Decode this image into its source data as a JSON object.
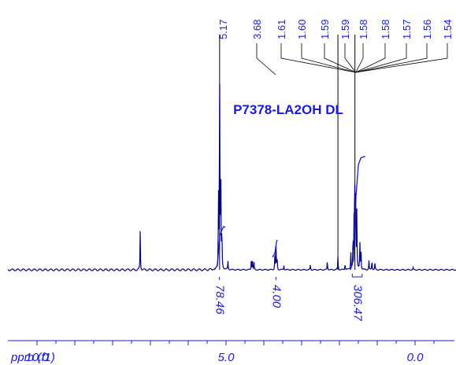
{
  "chart_data": {
    "type": "line",
    "title": "P7378-LA2OH DL",
    "xlabel": "ppm (f1)",
    "xlim": [
      10.0,
      -0.9
    ],
    "x_ticks": [
      {
        "value": 10.0,
        "label": "10.0"
      },
      {
        "value": 5.0,
        "label": "5.0"
      },
      {
        "value": 0.0,
        "label": "0.0"
      }
    ],
    "peak_labels": [
      "5.17",
      "3.68",
      "1.61",
      "1.60",
      "1.59",
      "1.59",
      "1.58",
      "1.58",
      "1.57",
      "1.56",
      "1.54"
    ],
    "peak_label_targets": [
      5.17,
      3.68,
      1.61,
      1.6,
      1.59,
      1.59,
      1.58,
      1.58,
      1.57,
      1.56,
      1.54
    ],
    "long_marker_positions": [
      5.17,
      2.04,
      1.59
    ],
    "integrals": [
      {
        "from": 5.3,
        "to": 5.05,
        "value": "78.46"
      },
      {
        "from": 3.72,
        "to": 3.64,
        "value": "4.00"
      },
      {
        "from": 1.66,
        "to": 1.4,
        "value": "306.47"
      }
    ],
    "peaks": [
      {
        "shift": 7.27,
        "height": 0.17
      },
      {
        "shift": 5.2,
        "height": 0.33
      },
      {
        "shift": 5.17,
        "height": 1.0
      },
      {
        "shift": 5.14,
        "height": 0.55
      },
      {
        "shift": 5.11,
        "height": 0.18
      },
      {
        "shift": 4.95,
        "height": 0.04
      },
      {
        "shift": 4.33,
        "height": 0.05
      },
      {
        "shift": 4.3,
        "height": 0.04
      },
      {
        "shift": 4.26,
        "height": 0.03
      },
      {
        "shift": 3.71,
        "height": 0.06
      },
      {
        "shift": 3.68,
        "height": 0.12
      },
      {
        "shift": 3.65,
        "height": 0.06
      },
      {
        "shift": 3.47,
        "height": 0.02
      },
      {
        "shift": 2.77,
        "height": 0.02
      },
      {
        "shift": 2.32,
        "height": 0.04
      },
      {
        "shift": 2.04,
        "height": 0.06
      },
      {
        "shift": 1.85,
        "height": 0.03
      },
      {
        "shift": 1.7,
        "height": 0.08
      },
      {
        "shift": 1.64,
        "height": 0.15
      },
      {
        "shift": 1.61,
        "height": 0.32
      },
      {
        "shift": 1.59,
        "height": 0.42
      },
      {
        "shift": 1.57,
        "height": 0.33
      },
      {
        "shift": 1.54,
        "height": 0.26
      },
      {
        "shift": 1.46,
        "height": 0.12
      },
      {
        "shift": 1.43,
        "height": 0.09
      },
      {
        "shift": 1.22,
        "height": 0.04
      },
      {
        "shift": 1.14,
        "height": 0.05
      },
      {
        "shift": 1.06,
        "height": 0.03
      },
      {
        "shift": 0.05,
        "height": 0.01
      }
    ],
    "colors": {
      "label": "#1a1adb",
      "spectrum": "#000080",
      "integral": "#1a1adb",
      "marker": "#000000"
    }
  }
}
